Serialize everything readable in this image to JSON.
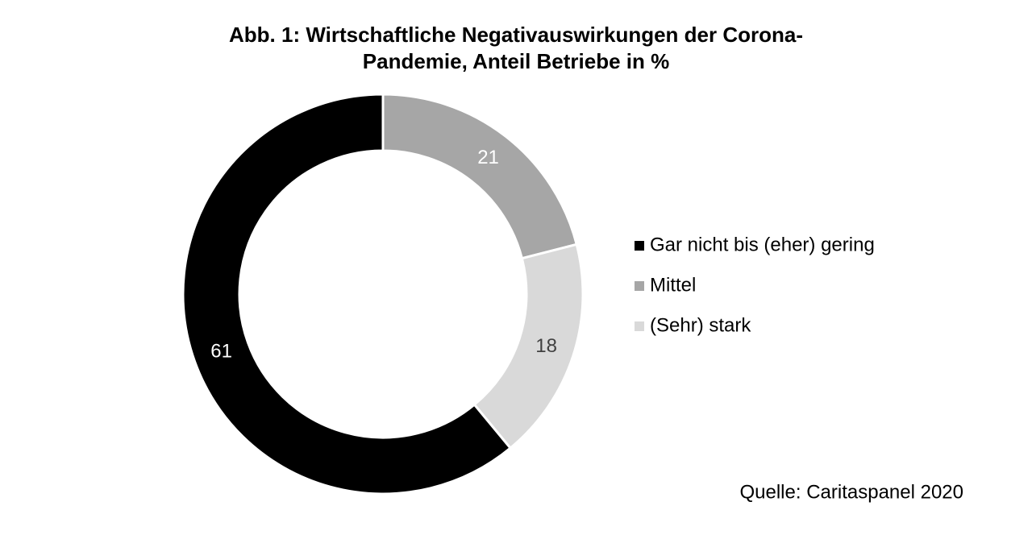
{
  "chart_data": {
    "type": "pie",
    "title": "Abb. 1: Wirtschaftliche Negativauswirkungen der Corona-Pandemie, Anteil Betriebe in %",
    "categories": [
      "Gar nicht bis (eher) gering",
      "Mittel",
      "(Sehr) stark"
    ],
    "values": [
      61,
      21,
      18
    ],
    "colors": [
      "#000000",
      "#a6a6a6",
      "#d9d9d9"
    ],
    "label_colors": [
      "#ffffff",
      "#ffffff",
      "#404040"
    ],
    "legend": "right",
    "source": "Quelle: Caritaspanel 2020"
  }
}
